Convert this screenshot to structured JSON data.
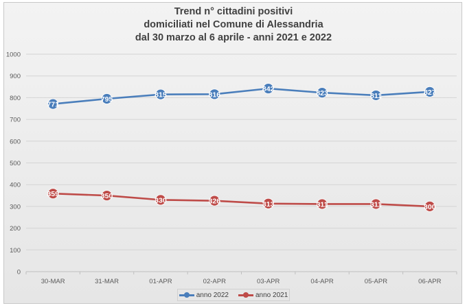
{
  "chart_data": {
    "type": "line",
    "title_lines": [
      "Trend n° cittadini positivi",
      "domiciliati nel Comune di Alessandria",
      "dal 30 marzo al 6 aprile - anni 2021 e 2022"
    ],
    "categories": [
      "30-MAR",
      "31-MAR",
      "01-APR",
      "02-APR",
      "03-APR",
      "04-APR",
      "05-APR",
      "06-APR"
    ],
    "ylim": [
      0,
      1000
    ],
    "yticks": [
      0,
      100,
      200,
      300,
      400,
      500,
      600,
      700,
      800,
      900,
      1000
    ],
    "grid": true,
    "legend_position": "bottom",
    "series": [
      {
        "name": "anno 2022",
        "color": "#4a7ebb",
        "values": [
          771,
          795,
          815,
          816,
          842,
          823,
          811,
          827
        ]
      },
      {
        "name": "anno 2021",
        "color": "#be4b48",
        "values": [
          359,
          350,
          330,
          326,
          313,
          311,
          311,
          300
        ]
      }
    ]
  }
}
